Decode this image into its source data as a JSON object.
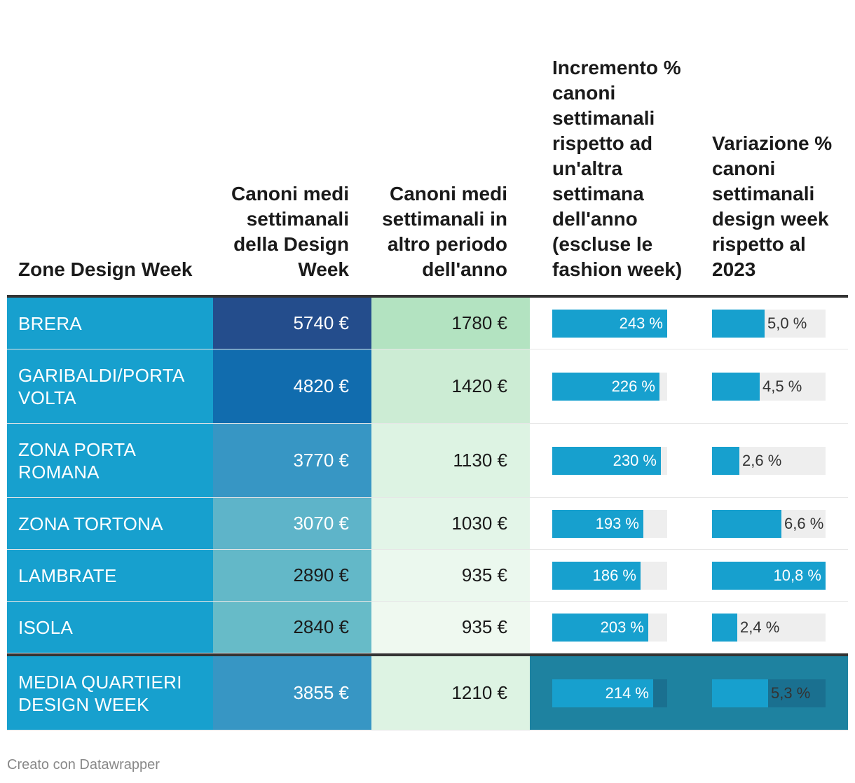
{
  "chart_data": {
    "type": "table",
    "columns": [
      "Zone Design Week",
      "Canoni medi settimanali della Design Week",
      "Canoni medi settimanali in altro periodo dell'anno",
      "Incremento % canoni settimanali rispetto ad un'altra settimana dell'anno (escluse le fashion week)",
      "Variazione % canoni settimanali design week rispetto al 2023"
    ],
    "rows": [
      {
        "zone": "BRERA",
        "design_week": "5740 €",
        "other_period": "1780 €",
        "increment": 243,
        "increment_label": "243 %",
        "variation": 5.0,
        "variation_label": "5,0 %",
        "dw_color": "#244d8c",
        "op_color": "#b3e3c1"
      },
      {
        "zone": "GARIBALDI/PORTA VOLTA",
        "design_week": "4820 €",
        "other_period": "1420 €",
        "increment": 226,
        "increment_label": "226 %",
        "variation": 4.5,
        "variation_label": "4,5 %",
        "dw_color": "#116cae",
        "op_color": "#ccecd4"
      },
      {
        "zone": "ZONA PORTA ROMANA",
        "design_week": "3770 €",
        "other_period": "1130 €",
        "increment": 230,
        "increment_label": "230 %",
        "variation": 2.6,
        "variation_label": "2,6 %",
        "dw_color": "#3796c4",
        "op_color": "#ddf3e3"
      },
      {
        "zone": "ZONA TORTONA",
        "design_week": "3070 €",
        "other_period": "1030 €",
        "increment": 193,
        "increment_label": "193 %",
        "variation": 6.6,
        "variation_label": "6,6 %",
        "dw_color": "#5eb4c9",
        "op_color": "#e3f5e8"
      },
      {
        "zone": "LAMBRATE",
        "design_week": "2890 €",
        "other_period": "935 €",
        "increment": 186,
        "increment_label": "186 %",
        "variation": 10.8,
        "variation_label": "10,8 %",
        "dw_color": "#63b8c8",
        "op_color": "#ebf8ee"
      },
      {
        "zone": "ISOLA",
        "design_week": "2840 €",
        "other_period": "935 €",
        "increment": 203,
        "increment_label": "203 %",
        "variation": 2.4,
        "variation_label": "2,4 %",
        "dw_color": "#67bbc8",
        "op_color": "#eff9f0"
      }
    ],
    "summary": {
      "zone": "MEDIA QUARTIERI DESIGN WEEK",
      "design_week": "3855 €",
      "other_period": "1210 €",
      "increment": 214,
      "increment_label": "214 %",
      "variation": 5.3,
      "variation_label": "5,3 %",
      "dw_color": "#3796c4",
      "op_color": "#ddf3e3"
    },
    "increment_max": 243,
    "variation_max": 10.8
  },
  "header": {
    "col0": "Zone Design Week",
    "col1": "Canoni medi settimanali della Design Week",
    "col2": "Canoni medi settimanali in altro periodo dell'anno",
    "col3": "Incremento % canoni settimanali rispetto ad un'altra settimana dell'anno (escluse le fashion week)",
    "col4": "Variazione % canoni settimanali design week rispetto al 2023"
  },
  "footer": {
    "credit": "Creato con Datawrapper"
  },
  "colors": {
    "zone_bg": "#17a0ce",
    "bar": "#17a0ce",
    "track": "#eeeeee",
    "summary_bg": "#1e82a0"
  }
}
